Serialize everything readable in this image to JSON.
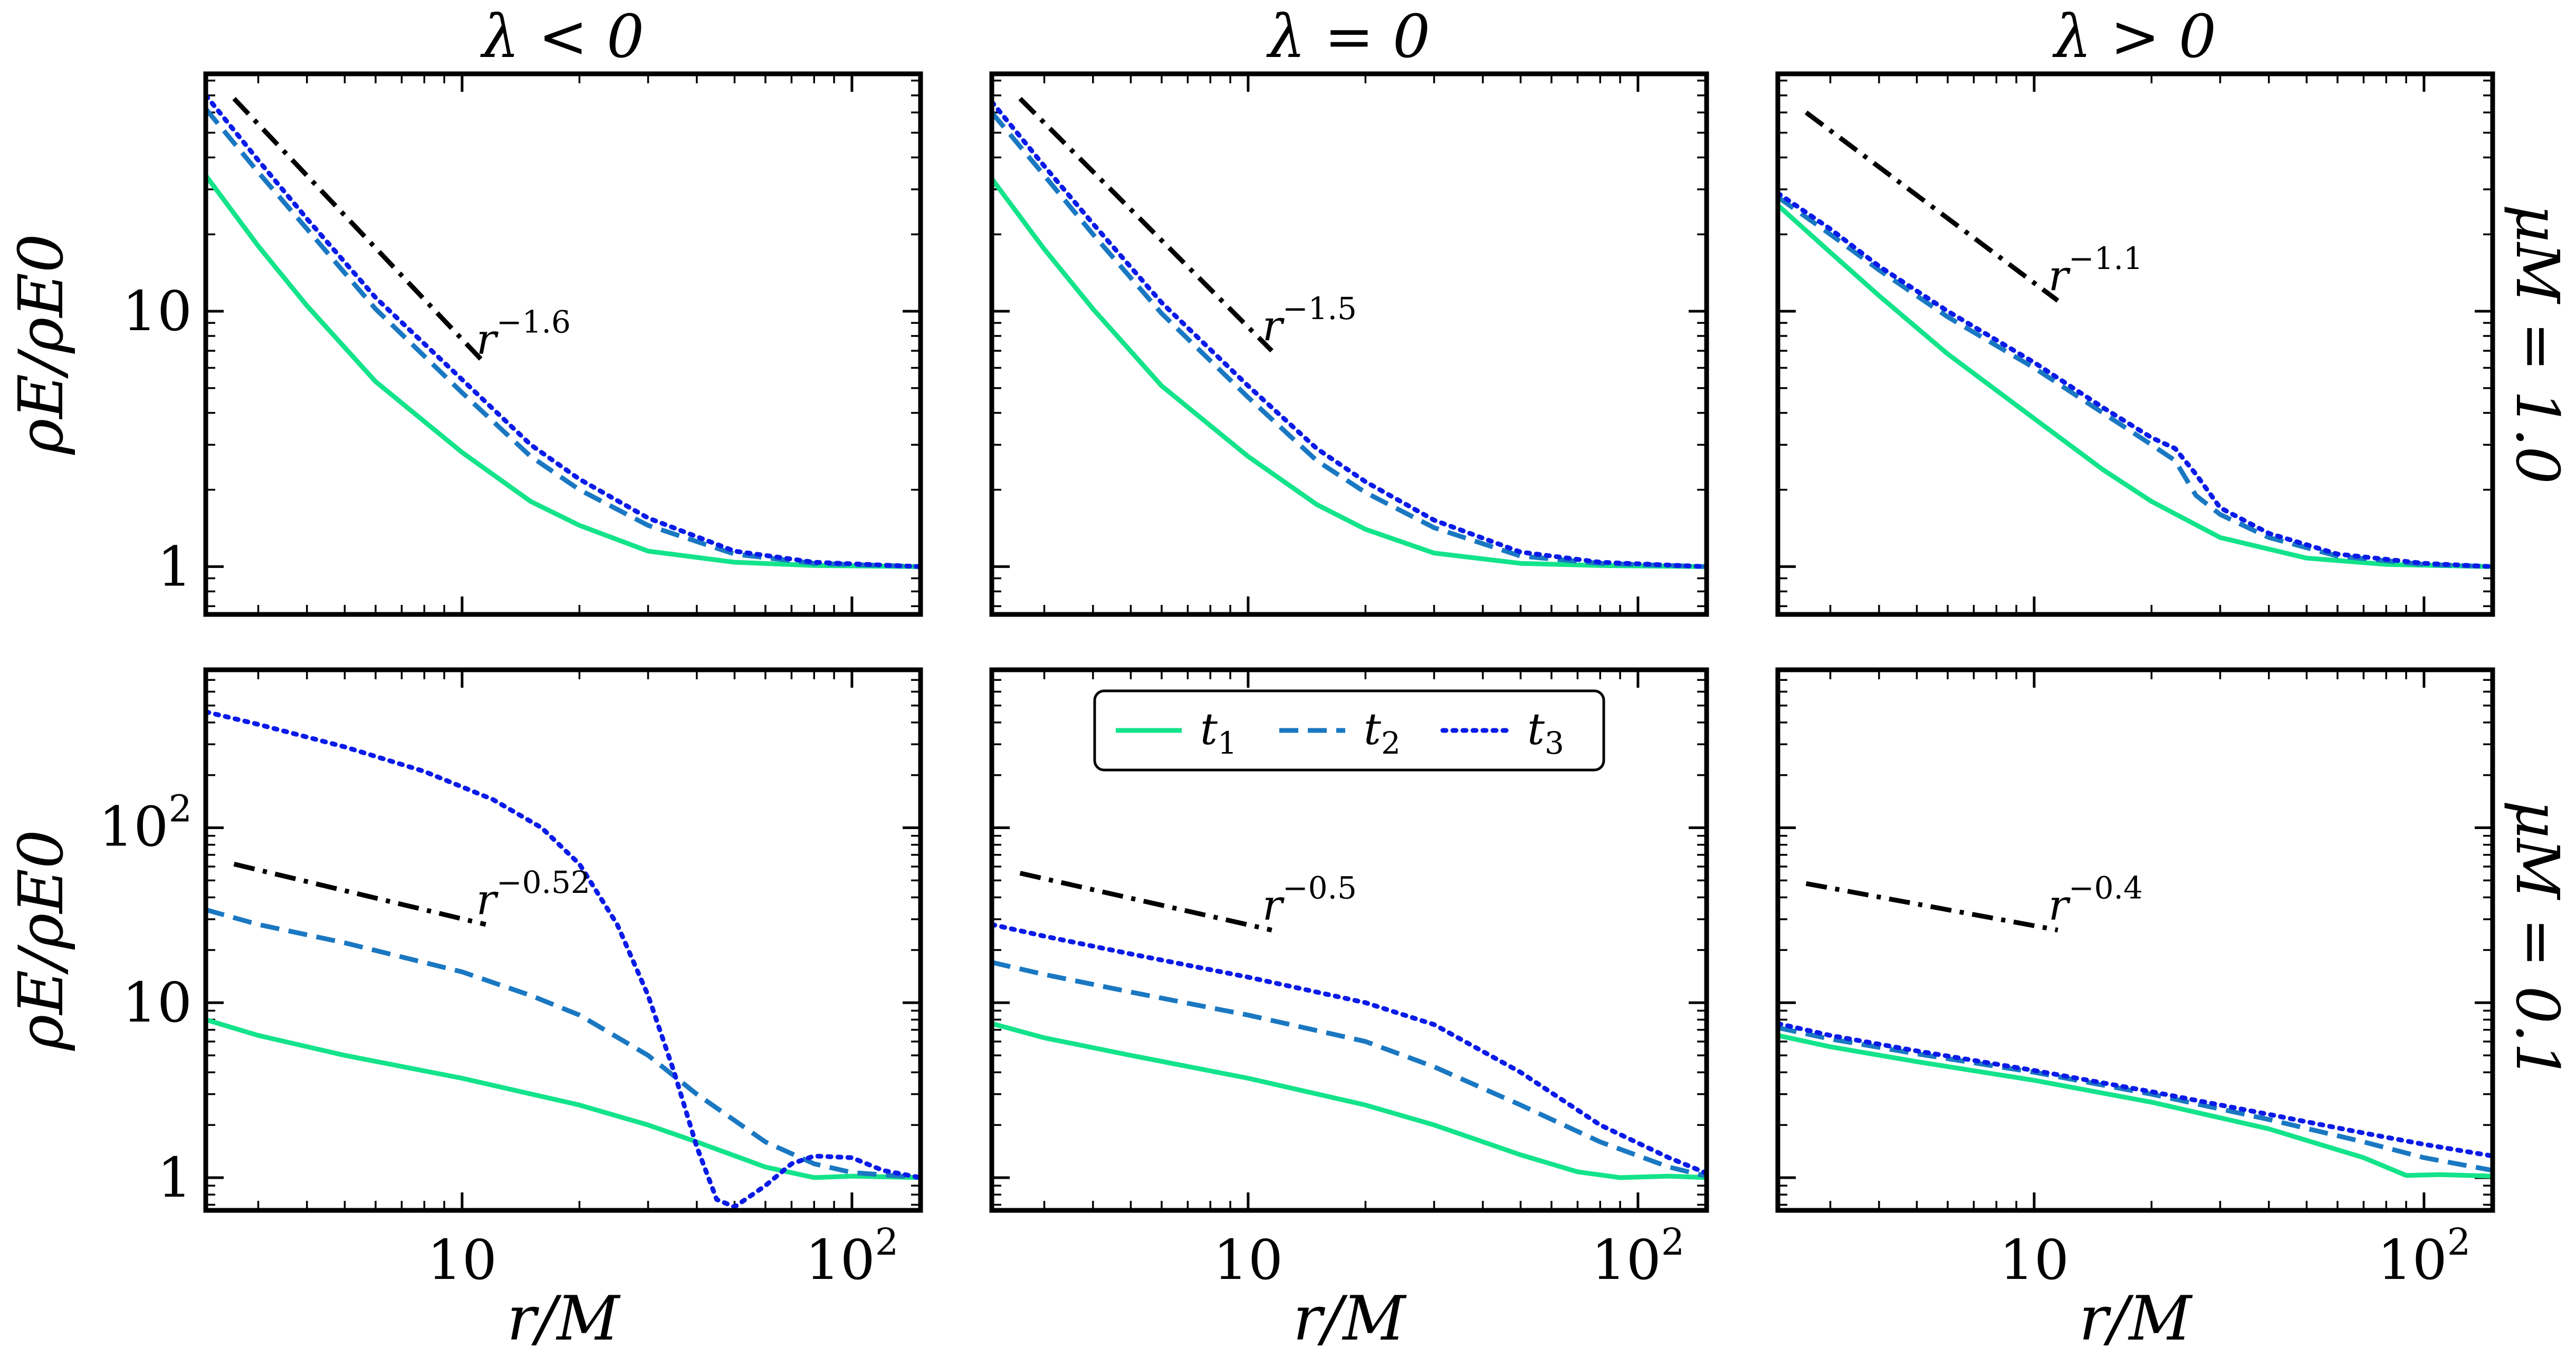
{
  "figure": {
    "column_titles": [
      "λ < 0",
      "λ = 0",
      "λ > 0"
    ],
    "row_labels": [
      "μM = 1.0",
      "μM = 0.1"
    ],
    "ylabel": "ρE/ρE0",
    "xlabel": "r/M",
    "xscale": "log",
    "yscale": "log",
    "x_ticks": [
      {
        "value": 10,
        "label": "10"
      },
      {
        "value": 100,
        "label": "10²"
      }
    ],
    "legend": {
      "placement": "upper-center, bottom-middle panel",
      "entries": [
        {
          "label": "t1",
          "style": "solid",
          "color": "#13E38A"
        },
        {
          "label": "t2",
          "style": "dashed",
          "color": "#1A78C2"
        },
        {
          "label": "t3",
          "style": "dotted",
          "color": "#0A1BE8"
        }
      ]
    }
  },
  "chart_data": [
    {
      "type": "line",
      "row": 0,
      "col": 0,
      "xlim": [
        2.2,
        150
      ],
      "ylim": [
        0.65,
        85
      ],
      "y_ticks": [
        {
          "value": 1,
          "label": "1"
        },
        {
          "value": 10,
          "label": "10"
        }
      ],
      "powerlaw": {
        "label": "r^-1.6",
        "x": [
          2.6,
          11.5
        ],
        "y": [
          68,
          6.2
        ]
      },
      "series": [
        {
          "name": "t1",
          "style": "solid",
          "x": [
            2.2,
            3,
            4,
            6,
            10,
            15,
            20,
            30,
            50,
            80,
            150
          ],
          "y": [
            34,
            18,
            10.5,
            5.3,
            2.8,
            1.8,
            1.45,
            1.15,
            1.04,
            1.01,
            1.0
          ]
        },
        {
          "name": "t2",
          "style": "dashed",
          "x": [
            2.2,
            3,
            4,
            6,
            10,
            15,
            20,
            30,
            50,
            80,
            150
          ],
          "y": [
            62,
            35,
            21,
            10.2,
            4.8,
            2.7,
            2.0,
            1.45,
            1.12,
            1.03,
            1.0
          ]
        },
        {
          "name": "t3",
          "style": "dotted",
          "x": [
            2.2,
            3,
            4,
            6,
            10,
            15,
            20,
            30,
            50,
            80,
            150
          ],
          "y": [
            70,
            39,
            23,
            11.3,
            5.4,
            3.0,
            2.2,
            1.55,
            1.15,
            1.04,
            1.0
          ]
        }
      ]
    },
    {
      "type": "line",
      "row": 0,
      "col": 1,
      "xlim": [
        2.2,
        150
      ],
      "ylim": [
        0.65,
        85
      ],
      "y_ticks": [
        {
          "value": 1,
          "label": "1"
        },
        {
          "value": 10,
          "label": "10"
        }
      ],
      "powerlaw": {
        "label": "r^-1.5",
        "x": [
          2.6,
          11.5
        ],
        "y": [
          68,
          7.0
        ]
      },
      "series": [
        {
          "name": "t1",
          "style": "solid",
          "x": [
            2.2,
            3,
            4,
            6,
            10,
            15,
            20,
            30,
            50,
            80,
            150
          ],
          "y": [
            33,
            17.5,
            10.2,
            5.1,
            2.7,
            1.75,
            1.4,
            1.13,
            1.03,
            1.01,
            1.0
          ]
        },
        {
          "name": "t2",
          "style": "dashed",
          "x": [
            2.2,
            3,
            4,
            6,
            10,
            15,
            20,
            30,
            50,
            80,
            150
          ],
          "y": [
            60,
            34,
            20,
            9.8,
            4.6,
            2.6,
            1.95,
            1.42,
            1.1,
            1.03,
            1.0
          ]
        },
        {
          "name": "t3",
          "style": "dotted",
          "x": [
            2.2,
            3,
            4,
            6,
            10,
            15,
            20,
            30,
            50,
            80,
            150
          ],
          "y": [
            66,
            37,
            22,
            10.8,
            5.1,
            2.9,
            2.15,
            1.52,
            1.14,
            1.04,
            1.0
          ]
        }
      ]
    },
    {
      "type": "line",
      "row": 0,
      "col": 2,
      "xlim": [
        2.2,
        150
      ],
      "ylim": [
        0.65,
        85
      ],
      "y_ticks": [
        {
          "value": 1,
          "label": "1"
        },
        {
          "value": 10,
          "label": "10"
        }
      ],
      "powerlaw": {
        "label": "r^-1.1",
        "x": [
          2.6,
          11.5
        ],
        "y": [
          60,
          11.0
        ]
      },
      "series": [
        {
          "name": "t1",
          "style": "solid",
          "x": [
            2.2,
            3,
            4,
            6,
            10,
            15,
            20,
            30,
            50,
            80,
            150
          ],
          "y": [
            26,
            17,
            11.5,
            6.8,
            3.8,
            2.4,
            1.8,
            1.3,
            1.08,
            1.02,
            1.0
          ]
        },
        {
          "name": "t2",
          "style": "dashed",
          "x": [
            2.2,
            3,
            4,
            6,
            10,
            15,
            20,
            23,
            26,
            30,
            40,
            60,
            100,
            150
          ],
          "y": [
            28,
            20,
            14.5,
            9.5,
            6.0,
            4.0,
            3.0,
            2.6,
            1.9,
            1.6,
            1.3,
            1.1,
            1.02,
            1.0
          ]
        },
        {
          "name": "t3",
          "style": "dotted",
          "x": [
            2.2,
            3,
            4,
            6,
            10,
            15,
            20,
            23,
            26,
            30,
            40,
            60,
            100,
            150
          ],
          "y": [
            29,
            21,
            15,
            10,
            6.3,
            4.2,
            3.2,
            2.9,
            2.3,
            1.7,
            1.35,
            1.12,
            1.03,
            1.0
          ]
        }
      ]
    },
    {
      "type": "line",
      "row": 1,
      "col": 0,
      "xlim": [
        2.2,
        150
      ],
      "ylim": [
        0.65,
        800
      ],
      "y_ticks": [
        {
          "value": 1,
          "label": "1"
        },
        {
          "value": 10,
          "label": "10"
        },
        {
          "value": 100,
          "label": "10²"
        }
      ],
      "powerlaw": {
        "label": "r^-0.52",
        "x": [
          2.6,
          11.5
        ],
        "y": [
          62,
          28
        ]
      },
      "series": [
        {
          "name": "t1",
          "style": "solid",
          "x": [
            2.2,
            3,
            5,
            10,
            20,
            30,
            40,
            60,
            80,
            100,
            150
          ],
          "y": [
            8.0,
            6.5,
            5.0,
            3.7,
            2.6,
            2.0,
            1.6,
            1.15,
            1.0,
            1.02,
            1.0
          ]
        },
        {
          "name": "t2",
          "style": "dashed",
          "x": [
            2.2,
            3,
            5,
            10,
            15,
            20,
            30,
            40,
            60,
            80,
            100,
            150
          ],
          "y": [
            34,
            28,
            22,
            15,
            11,
            8.5,
            5.0,
            3.0,
            1.6,
            1.2,
            1.07,
            1.0
          ]
        },
        {
          "name": "t3",
          "style": "dotted",
          "x": [
            2.2,
            3,
            5,
            8,
            12,
            16,
            20,
            25,
            30,
            35,
            40,
            45,
            50,
            60,
            70,
            80,
            100,
            120,
            150
          ],
          "y": [
            460,
            390,
            290,
            210,
            145,
            100,
            62,
            28,
            11,
            4.0,
            1.5,
            0.75,
            0.68,
            0.9,
            1.2,
            1.33,
            1.3,
            1.1,
            1.0
          ]
        }
      ]
    },
    {
      "type": "line",
      "row": 1,
      "col": 1,
      "xlim": [
        2.2,
        150
      ],
      "ylim": [
        0.65,
        800
      ],
      "y_ticks": [
        {
          "value": 1,
          "label": "1"
        },
        {
          "value": 10,
          "label": "10"
        },
        {
          "value": 100,
          "label": "10²"
        }
      ],
      "powerlaw": {
        "label": "r^-0.5",
        "x": [
          2.6,
          11.5
        ],
        "y": [
          55,
          26
        ]
      },
      "series": [
        {
          "name": "t1",
          "style": "solid",
          "x": [
            2.2,
            3,
            5,
            10,
            20,
            30,
            50,
            70,
            90,
            120,
            150
          ],
          "y": [
            7.6,
            6.3,
            5.0,
            3.7,
            2.6,
            2.0,
            1.35,
            1.08,
            1.0,
            1.02,
            1.0
          ]
        },
        {
          "name": "t2",
          "style": "dashed",
          "x": [
            2.2,
            3,
            5,
            10,
            20,
            30,
            50,
            80,
            120,
            150
          ],
          "y": [
            17,
            14.5,
            11.5,
            8.5,
            6.0,
            4.3,
            2.6,
            1.6,
            1.15,
            1.02
          ]
        },
        {
          "name": "t3",
          "style": "dotted",
          "x": [
            2.2,
            3,
            5,
            10,
            20,
            30,
            50,
            80,
            120,
            150
          ],
          "y": [
            28,
            24,
            19,
            14,
            10,
            7.5,
            4.0,
            2.0,
            1.3,
            1.06
          ]
        }
      ]
    },
    {
      "type": "line",
      "row": 1,
      "col": 2,
      "xlim": [
        2.2,
        150
      ],
      "ylim": [
        0.65,
        800
      ],
      "y_ticks": [
        {
          "value": 1,
          "label": "1"
        },
        {
          "value": 10,
          "label": "10"
        },
        {
          "value": 100,
          "label": "10²"
        }
      ],
      "powerlaw": {
        "label": "r^-0.4",
        "x": [
          2.6,
          11.5
        ],
        "y": [
          48,
          26
        ]
      },
      "series": [
        {
          "name": "t1",
          "style": "solid",
          "x": [
            2.2,
            3,
            5,
            10,
            20,
            40,
            70,
            90,
            110,
            150
          ],
          "y": [
            6.5,
            5.6,
            4.6,
            3.6,
            2.7,
            1.9,
            1.3,
            1.03,
            1.04,
            1.02
          ]
        },
        {
          "name": "t2",
          "style": "dashed",
          "x": [
            2.2,
            3,
            5,
            10,
            20,
            40,
            70,
            100,
            150
          ],
          "y": [
            7.2,
            6.2,
            5.1,
            4.0,
            3.0,
            2.15,
            1.6,
            1.3,
            1.1
          ]
        },
        {
          "name": "t3",
          "style": "dotted",
          "x": [
            2.2,
            3,
            5,
            10,
            20,
            40,
            70,
            100,
            150
          ],
          "y": [
            7.6,
            6.5,
            5.3,
            4.1,
            3.1,
            2.3,
            1.8,
            1.55,
            1.33
          ]
        }
      ]
    }
  ]
}
